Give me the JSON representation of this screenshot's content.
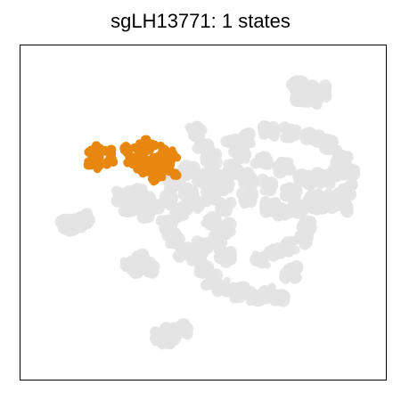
{
  "chart_data": {
    "type": "scatter",
    "title": "sgLH13771: 1 states",
    "xlabel": "",
    "ylabel": "",
    "axes_ticks": false,
    "grid": false,
    "colors": {
      "background_cells": "#e3e3e3",
      "highlighted_state": "#e8870e",
      "frame": "#000000"
    },
    "series": [
      {
        "role": "background",
        "clusters": [
          {
            "points": [
              [
                0.48,
                0.74
              ],
              [
                0.5,
                0.7
              ],
              [
                0.52,
                0.66
              ],
              [
                0.46,
                0.62
              ],
              [
                0.5,
                0.6
              ],
              [
                0.55,
                0.6
              ],
              [
                0.42,
                0.58
              ],
              [
                0.46,
                0.56
              ],
              [
                0.4,
                0.54
              ],
              [
                0.44,
                0.5
              ],
              [
                0.48,
                0.52
              ],
              [
                0.52,
                0.55
              ],
              [
                0.56,
                0.58
              ]
            ]
          },
          {
            "points": [
              [
                0.58,
                0.7
              ],
              [
                0.62,
                0.72
              ],
              [
                0.68,
                0.74
              ],
              [
                0.74,
                0.74
              ],
              [
                0.8,
                0.72
              ],
              [
                0.85,
                0.7
              ],
              [
                0.88,
                0.66
              ],
              [
                0.9,
                0.62
              ],
              [
                0.89,
                0.57
              ],
              [
                0.86,
                0.54
              ],
              [
                0.8,
                0.54
              ],
              [
                0.74,
                0.56
              ],
              [
                0.68,
                0.58
              ],
              [
                0.62,
                0.6
              ],
              [
                0.58,
                0.63
              ],
              [
                0.6,
                0.67
              ],
              [
                0.66,
                0.66
              ],
              [
                0.72,
                0.64
              ],
              [
                0.78,
                0.6
              ],
              [
                0.83,
                0.6
              ],
              [
                0.86,
                0.62
              ]
            ]
          },
          {
            "points": [
              [
                0.56,
                0.52
              ],
              [
                0.62,
                0.54
              ],
              [
                0.68,
                0.52
              ],
              [
                0.72,
                0.5
              ],
              [
                0.76,
                0.51
              ],
              [
                0.8,
                0.52
              ],
              [
                0.84,
                0.53
              ],
              [
                0.88,
                0.52
              ]
            ]
          },
          {
            "points": [
              [
                0.4,
                0.46
              ],
              [
                0.42,
                0.42
              ],
              [
                0.45,
                0.38
              ],
              [
                0.48,
                0.36
              ],
              [
                0.5,
                0.33
              ],
              [
                0.52,
                0.3
              ],
              [
                0.55,
                0.28
              ],
              [
                0.6,
                0.26
              ],
              [
                0.64,
                0.25
              ],
              [
                0.68,
                0.26
              ],
              [
                0.71,
                0.25
              ],
              [
                0.5,
                0.4
              ],
              [
                0.54,
                0.42
              ],
              [
                0.56,
                0.45
              ],
              [
                0.52,
                0.47
              ],
              [
                0.56,
                0.37
              ]
            ]
          },
          {
            "points": [
              [
                0.66,
                0.36
              ],
              [
                0.7,
                0.38
              ],
              [
                0.74,
                0.4
              ],
              [
                0.78,
                0.42
              ],
              [
                0.78,
                0.46
              ],
              [
                0.74,
                0.32
              ]
            ]
          },
          {
            "points": [
              [
                0.28,
                0.55
              ],
              [
                0.32,
                0.56
              ],
              [
                0.36,
                0.53
              ],
              [
                0.34,
                0.5
              ],
              [
                0.3,
                0.52
              ]
            ]
          },
          {
            "points": [
              [
                0.13,
                0.46
              ],
              [
                0.16,
                0.47
              ],
              [
                0.18,
                0.48
              ]
            ]
          },
          {
            "points": [
              [
                0.3,
                0.35
              ],
              [
                0.33,
                0.36
              ],
              [
                0.35,
                0.34
              ],
              [
                0.32,
                0.33
              ]
            ]
          },
          {
            "points": [
              [
                0.38,
                0.13
              ],
              [
                0.41,
                0.14
              ],
              [
                0.44,
                0.15
              ],
              [
                0.4,
                0.12
              ]
            ]
          },
          {
            "points": [
              [
                0.76,
                0.88
              ],
              [
                0.79,
                0.86
              ],
              [
                0.82,
                0.86
              ],
              [
                0.8,
                0.84
              ],
              [
                0.77,
                0.85
              ]
            ]
          }
        ]
      },
      {
        "name": "",
        "role": "highlighted",
        "points": [
          [
            0.19,
            0.68
          ],
          [
            0.2,
            0.66
          ],
          [
            0.21,
            0.69
          ],
          [
            0.22,
            0.67
          ],
          [
            0.23,
            0.65
          ],
          [
            0.24,
            0.68
          ],
          [
            0.25,
            0.66
          ],
          [
            0.19,
            0.65
          ],
          [
            0.21,
            0.64
          ],
          [
            0.29,
            0.69
          ],
          [
            0.3,
            0.67
          ],
          [
            0.31,
            0.66
          ],
          [
            0.32,
            0.69
          ],
          [
            0.33,
            0.7
          ],
          [
            0.33,
            0.67
          ],
          [
            0.34,
            0.65
          ],
          [
            0.34,
            0.62
          ],
          [
            0.35,
            0.68
          ],
          [
            0.36,
            0.66
          ],
          [
            0.36,
            0.63
          ],
          [
            0.37,
            0.7
          ],
          [
            0.38,
            0.67
          ],
          [
            0.38,
            0.64
          ],
          [
            0.38,
            0.61
          ],
          [
            0.39,
            0.69
          ],
          [
            0.4,
            0.66
          ],
          [
            0.4,
            0.63
          ],
          [
            0.41,
            0.68
          ],
          [
            0.41,
            0.65
          ],
          [
            0.42,
            0.62
          ],
          [
            0.42,
            0.67
          ],
          [
            0.32,
            0.64
          ],
          [
            0.3,
            0.65
          ],
          [
            0.35,
            0.71
          ],
          [
            0.37,
            0.6
          ]
        ]
      }
    ]
  }
}
